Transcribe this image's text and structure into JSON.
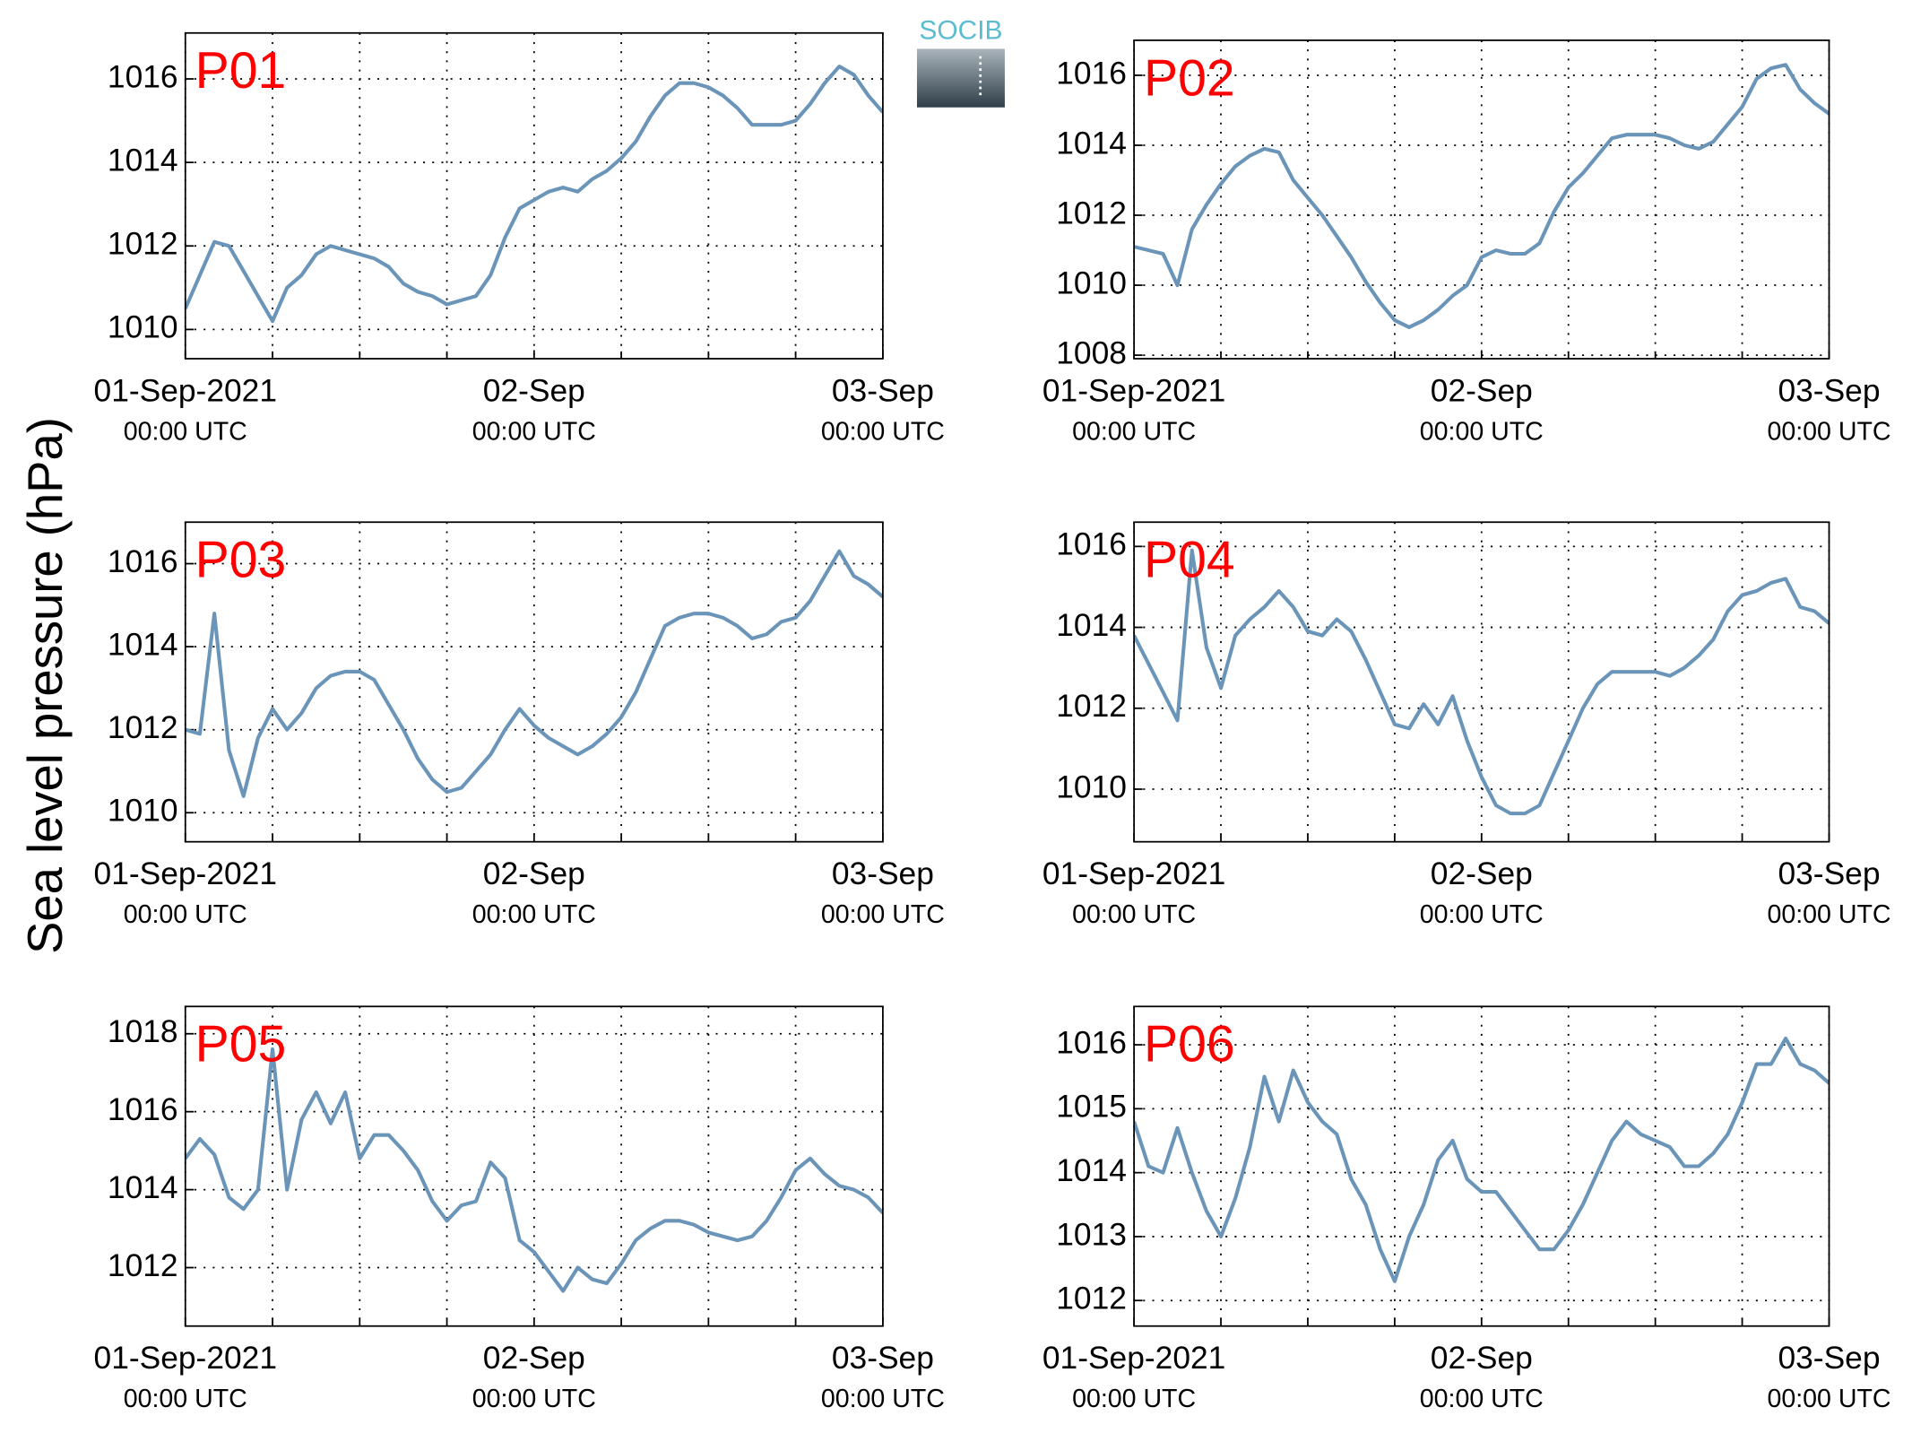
{
  "ylabel": "Sea level pressure (hPa)",
  "logo_text": "SOCIB",
  "chart_data": [
    {
      "type": "line",
      "title": "P01",
      "color": "#6a94b8",
      "xlim": [
        "2021-09-01 00:00",
        "2021-09-03 00:00"
      ],
      "ylim": [
        1009.3,
        1017.1
      ],
      "yticks": [
        1010,
        1012,
        1014,
        1016
      ],
      "grid": true,
      "xticks": [
        {
          "value": "2021-09-01 00:00",
          "label": [
            "01-Sep-2021",
            "00:00 UTC"
          ]
        },
        {
          "value": "2021-09-02 00:00",
          "label": [
            "02-Sep",
            "00:00 UTC"
          ]
        },
        {
          "value": "2021-09-03 00:00",
          "label": [
            "03-Sep",
            "00:00 UTC"
          ]
        }
      ],
      "xminorticks": [
        "2021-09-01 06:00",
        "2021-09-01 12:00",
        "2021-09-01 18:00",
        "2021-09-02 06:00",
        "2021-09-02 12:00",
        "2021-09-02 18:00"
      ],
      "x": [
        "2021-09-01 00:00",
        "2021-09-01 01:00",
        "2021-09-01 02:00",
        "2021-09-01 03:00",
        "2021-09-01 04:00",
        "2021-09-01 05:00",
        "2021-09-01 06:00",
        "2021-09-01 07:00",
        "2021-09-01 08:00",
        "2021-09-01 09:00",
        "2021-09-01 10:00",
        "2021-09-01 11:00",
        "2021-09-01 12:00",
        "2021-09-01 13:00",
        "2021-09-01 14:00",
        "2021-09-01 15:00",
        "2021-09-01 16:00",
        "2021-09-01 17:00",
        "2021-09-01 18:00",
        "2021-09-01 19:00",
        "2021-09-01 20:00",
        "2021-09-01 21:00",
        "2021-09-01 22:00",
        "2021-09-01 23:00",
        "2021-09-02 00:00",
        "2021-09-02 01:00",
        "2021-09-02 02:00",
        "2021-09-02 03:00",
        "2021-09-02 04:00",
        "2021-09-02 05:00",
        "2021-09-02 06:00",
        "2021-09-02 07:00",
        "2021-09-02 08:00",
        "2021-09-02 09:00",
        "2021-09-02 10:00",
        "2021-09-02 11:00",
        "2021-09-02 12:00",
        "2021-09-02 13:00",
        "2021-09-02 14:00",
        "2021-09-02 15:00",
        "2021-09-02 16:00",
        "2021-09-02 17:00",
        "2021-09-02 18:00",
        "2021-09-02 19:00",
        "2021-09-02 20:00",
        "2021-09-02 21:00",
        "2021-09-02 22:00",
        "2021-09-02 23:00",
        "2021-09-03 00:00"
      ],
      "values": [
        1010.5,
        1011.3,
        1012.1,
        1012.0,
        1011.4,
        1010.8,
        1010.2,
        1011.0,
        1011.3,
        1011.8,
        1012.0,
        1011.9,
        1011.8,
        1011.7,
        1011.5,
        1011.1,
        1010.9,
        1010.8,
        1010.6,
        1010.7,
        1010.8,
        1011.3,
        1012.2,
        1012.9,
        1013.1,
        1013.3,
        1013.4,
        1013.3,
        1013.6,
        1013.8,
        1014.1,
        1014.5,
        1015.1,
        1015.6,
        1015.9,
        1015.9,
        1015.8,
        1015.6,
        1015.3,
        1014.9,
        1014.9,
        1014.9,
        1015.0,
        1015.4,
        1015.9,
        1016.3,
        1016.1,
        1015.6,
        1015.2
      ]
    },
    {
      "type": "line",
      "title": "P02",
      "color": "#6a94b8",
      "xlim": [
        "2021-09-01 00:00",
        "2021-09-03 00:00"
      ],
      "ylim": [
        1007.9,
        1017.0
      ],
      "yticks": [
        1008,
        1010,
        1012,
        1014,
        1016
      ],
      "grid": true,
      "xticks": [
        {
          "value": "2021-09-01 00:00",
          "label": [
            "01-Sep-2021",
            "00:00 UTC"
          ]
        },
        {
          "value": "2021-09-02 00:00",
          "label": [
            "02-Sep",
            "00:00 UTC"
          ]
        },
        {
          "value": "2021-09-03 00:00",
          "label": [
            "03-Sep",
            "00:00 UTC"
          ]
        }
      ],
      "xminorticks": [
        "2021-09-01 06:00",
        "2021-09-01 12:00",
        "2021-09-01 18:00",
        "2021-09-02 06:00",
        "2021-09-02 12:00",
        "2021-09-02 18:00"
      ],
      "x": [
        "2021-09-01 00:00",
        "2021-09-01 01:00",
        "2021-09-01 02:00",
        "2021-09-01 03:00",
        "2021-09-01 04:00",
        "2021-09-01 05:00",
        "2021-09-01 06:00",
        "2021-09-01 07:00",
        "2021-09-01 08:00",
        "2021-09-01 09:00",
        "2021-09-01 10:00",
        "2021-09-01 11:00",
        "2021-09-01 12:00",
        "2021-09-01 13:00",
        "2021-09-01 14:00",
        "2021-09-01 15:00",
        "2021-09-01 16:00",
        "2021-09-01 17:00",
        "2021-09-01 18:00",
        "2021-09-01 19:00",
        "2021-09-01 20:00",
        "2021-09-01 21:00",
        "2021-09-01 22:00",
        "2021-09-01 23:00",
        "2021-09-02 00:00",
        "2021-09-02 01:00",
        "2021-09-02 02:00",
        "2021-09-02 03:00",
        "2021-09-02 04:00",
        "2021-09-02 05:00",
        "2021-09-02 06:00",
        "2021-09-02 07:00",
        "2021-09-02 08:00",
        "2021-09-02 09:00",
        "2021-09-02 10:00",
        "2021-09-02 11:00",
        "2021-09-02 12:00",
        "2021-09-02 13:00",
        "2021-09-02 14:00",
        "2021-09-02 15:00",
        "2021-09-02 16:00",
        "2021-09-02 17:00",
        "2021-09-02 18:00",
        "2021-09-02 19:00",
        "2021-09-02 20:00",
        "2021-09-02 21:00",
        "2021-09-02 22:00",
        "2021-09-02 23:00",
        "2021-09-03 00:00"
      ],
      "values": [
        1011.1,
        1011.0,
        1010.9,
        1010.0,
        1011.6,
        1012.3,
        1012.9,
        1013.4,
        1013.7,
        1013.9,
        1013.8,
        1013.0,
        1012.5,
        1012.0,
        1011.4,
        1010.8,
        1010.1,
        1009.5,
        1009.0,
        1008.8,
        1009.0,
        1009.3,
        1009.7,
        1010.0,
        1010.8,
        1011.0,
        1010.9,
        1010.9,
        1011.2,
        1012.1,
        1012.8,
        1013.2,
        1013.7,
        1014.2,
        1014.3,
        1014.3,
        1014.3,
        1014.2,
        1014.0,
        1013.9,
        1014.1,
        1014.6,
        1015.1,
        1015.9,
        1016.2,
        1016.3,
        1015.6,
        1015.2,
        1014.9
      ]
    },
    {
      "type": "line",
      "title": "P03",
      "color": "#6a94b8",
      "xlim": [
        "2021-09-01 00:00",
        "2021-09-03 00:00"
      ],
      "ylim": [
        1009.3,
        1017.0
      ],
      "yticks": [
        1010,
        1012,
        1014,
        1016
      ],
      "grid": true,
      "xticks": [
        {
          "value": "2021-09-01 00:00",
          "label": [
            "01-Sep-2021",
            "00:00 UTC"
          ]
        },
        {
          "value": "2021-09-02 00:00",
          "label": [
            "02-Sep",
            "00:00 UTC"
          ]
        },
        {
          "value": "2021-09-03 00:00",
          "label": [
            "03-Sep",
            "00:00 UTC"
          ]
        }
      ],
      "xminorticks": [
        "2021-09-01 06:00",
        "2021-09-01 12:00",
        "2021-09-01 18:00",
        "2021-09-02 06:00",
        "2021-09-02 12:00",
        "2021-09-02 18:00"
      ],
      "x": [
        "2021-09-01 00:00",
        "2021-09-01 01:00",
        "2021-09-01 02:00",
        "2021-09-01 03:00",
        "2021-09-01 04:00",
        "2021-09-01 05:00",
        "2021-09-01 06:00",
        "2021-09-01 07:00",
        "2021-09-01 08:00",
        "2021-09-01 09:00",
        "2021-09-01 10:00",
        "2021-09-01 11:00",
        "2021-09-01 12:00",
        "2021-09-01 13:00",
        "2021-09-01 14:00",
        "2021-09-01 15:00",
        "2021-09-01 16:00",
        "2021-09-01 17:00",
        "2021-09-01 18:00",
        "2021-09-01 19:00",
        "2021-09-01 20:00",
        "2021-09-01 21:00",
        "2021-09-01 22:00",
        "2021-09-01 23:00",
        "2021-09-02 00:00",
        "2021-09-02 01:00",
        "2021-09-02 02:00",
        "2021-09-02 03:00",
        "2021-09-02 04:00",
        "2021-09-02 05:00",
        "2021-09-02 06:00",
        "2021-09-02 07:00",
        "2021-09-02 08:00",
        "2021-09-02 09:00",
        "2021-09-02 10:00",
        "2021-09-02 11:00",
        "2021-09-02 12:00",
        "2021-09-02 13:00",
        "2021-09-02 14:00",
        "2021-09-02 15:00",
        "2021-09-02 16:00",
        "2021-09-02 17:00",
        "2021-09-02 18:00",
        "2021-09-02 19:00",
        "2021-09-02 20:00",
        "2021-09-02 21:00",
        "2021-09-02 22:00",
        "2021-09-02 23:00",
        "2021-09-03 00:00"
      ],
      "values": [
        1012.0,
        1011.9,
        1014.8,
        1011.5,
        1010.4,
        1011.8,
        1012.5,
        1012.0,
        1012.4,
        1013.0,
        1013.3,
        1013.4,
        1013.4,
        1013.2,
        1012.6,
        1012.0,
        1011.3,
        1010.8,
        1010.5,
        1010.6,
        1011.0,
        1011.4,
        1012.0,
        1012.5,
        1012.1,
        1011.8,
        1011.6,
        1011.4,
        1011.6,
        1011.9,
        1012.3,
        1012.9,
        1013.7,
        1014.5,
        1014.7,
        1014.8,
        1014.8,
        1014.7,
        1014.5,
        1014.2,
        1014.3,
        1014.6,
        1014.7,
        1015.1,
        1015.7,
        1016.3,
        1015.7,
        1015.5,
        1015.2
      ]
    },
    {
      "type": "line",
      "title": "P04",
      "color": "#6a94b8",
      "xlim": [
        "2021-09-01 00:00",
        "2021-09-03 00:00"
      ],
      "ylim": [
        1008.7,
        1016.6
      ],
      "yticks": [
        1010,
        1012,
        1014,
        1016
      ],
      "grid": true,
      "xticks": [
        {
          "value": "2021-09-01 00:00",
          "label": [
            "01-Sep-2021",
            "00:00 UTC"
          ]
        },
        {
          "value": "2021-09-02 00:00",
          "label": [
            "02-Sep",
            "00:00 UTC"
          ]
        },
        {
          "value": "2021-09-03 00:00",
          "label": [
            "03-Sep",
            "00:00 UTC"
          ]
        }
      ],
      "xminorticks": [
        "2021-09-01 06:00",
        "2021-09-01 12:00",
        "2021-09-01 18:00",
        "2021-09-02 06:00",
        "2021-09-02 12:00",
        "2021-09-02 18:00"
      ],
      "x": [
        "2021-09-01 00:00",
        "2021-09-01 01:00",
        "2021-09-01 02:00",
        "2021-09-01 03:00",
        "2021-09-01 04:00",
        "2021-09-01 05:00",
        "2021-09-01 06:00",
        "2021-09-01 07:00",
        "2021-09-01 08:00",
        "2021-09-01 09:00",
        "2021-09-01 10:00",
        "2021-09-01 11:00",
        "2021-09-01 12:00",
        "2021-09-01 13:00",
        "2021-09-01 14:00",
        "2021-09-01 15:00",
        "2021-09-01 16:00",
        "2021-09-01 17:00",
        "2021-09-01 18:00",
        "2021-09-01 19:00",
        "2021-09-01 20:00",
        "2021-09-01 21:00",
        "2021-09-01 22:00",
        "2021-09-01 23:00",
        "2021-09-02 00:00",
        "2021-09-02 01:00",
        "2021-09-02 02:00",
        "2021-09-02 03:00",
        "2021-09-02 04:00",
        "2021-09-02 05:00",
        "2021-09-02 06:00",
        "2021-09-02 07:00",
        "2021-09-02 08:00",
        "2021-09-02 09:00",
        "2021-09-02 10:00",
        "2021-09-02 11:00",
        "2021-09-02 12:00",
        "2021-09-02 13:00",
        "2021-09-02 14:00",
        "2021-09-02 15:00",
        "2021-09-02 16:00",
        "2021-09-02 17:00",
        "2021-09-02 18:00",
        "2021-09-02 19:00",
        "2021-09-02 20:00",
        "2021-09-02 21:00",
        "2021-09-02 22:00",
        "2021-09-02 23:00",
        "2021-09-03 00:00"
      ],
      "values": [
        1013.8,
        1013.1,
        1012.4,
        1011.7,
        1015.9,
        1013.5,
        1012.5,
        1013.8,
        1014.2,
        1014.5,
        1014.9,
        1014.5,
        1013.9,
        1013.8,
        1014.2,
        1013.9,
        1013.2,
        1012.4,
        1011.6,
        1011.5,
        1012.1,
        1011.6,
        1012.3,
        1011.2,
        1010.3,
        1009.6,
        1009.4,
        1009.4,
        1009.6,
        1010.4,
        1011.2,
        1012.0,
        1012.6,
        1012.9,
        1012.9,
        1012.9,
        1012.9,
        1012.8,
        1013.0,
        1013.3,
        1013.7,
        1014.4,
        1014.8,
        1014.9,
        1015.1,
        1015.2,
        1014.5,
        1014.4,
        1014.1
      ]
    },
    {
      "type": "line",
      "title": "P05",
      "color": "#6a94b8",
      "xlim": [
        "2021-09-01 00:00",
        "2021-09-03 00:00"
      ],
      "ylim": [
        1010.5,
        1018.7
      ],
      "yticks": [
        1012,
        1014,
        1016,
        1018
      ],
      "grid": true,
      "xticks": [
        {
          "value": "2021-09-01 00:00",
          "label": [
            "01-Sep-2021",
            "00:00 UTC"
          ]
        },
        {
          "value": "2021-09-02 00:00",
          "label": [
            "02-Sep",
            "00:00 UTC"
          ]
        },
        {
          "value": "2021-09-03 00:00",
          "label": [
            "03-Sep",
            "00:00 UTC"
          ]
        }
      ],
      "xminorticks": [
        "2021-09-01 06:00",
        "2021-09-01 12:00",
        "2021-09-01 18:00",
        "2021-09-02 06:00",
        "2021-09-02 12:00",
        "2021-09-02 18:00"
      ],
      "x": [
        "2021-09-01 00:00",
        "2021-09-01 01:00",
        "2021-09-01 02:00",
        "2021-09-01 03:00",
        "2021-09-01 04:00",
        "2021-09-01 05:00",
        "2021-09-01 06:00",
        "2021-09-01 07:00",
        "2021-09-01 08:00",
        "2021-09-01 09:00",
        "2021-09-01 10:00",
        "2021-09-01 11:00",
        "2021-09-01 12:00",
        "2021-09-01 13:00",
        "2021-09-01 14:00",
        "2021-09-01 15:00",
        "2021-09-01 16:00",
        "2021-09-01 17:00",
        "2021-09-01 18:00",
        "2021-09-01 19:00",
        "2021-09-01 20:00",
        "2021-09-01 21:00",
        "2021-09-01 22:00",
        "2021-09-01 23:00",
        "2021-09-02 00:00",
        "2021-09-02 01:00",
        "2021-09-02 02:00",
        "2021-09-02 03:00",
        "2021-09-02 04:00",
        "2021-09-02 05:00",
        "2021-09-02 06:00",
        "2021-09-02 07:00",
        "2021-09-02 08:00",
        "2021-09-02 09:00",
        "2021-09-02 10:00",
        "2021-09-02 11:00",
        "2021-09-02 12:00",
        "2021-09-02 13:00",
        "2021-09-02 14:00",
        "2021-09-02 15:00",
        "2021-09-02 16:00",
        "2021-09-02 17:00",
        "2021-09-02 18:00",
        "2021-09-02 19:00",
        "2021-09-02 20:00",
        "2021-09-02 21:00",
        "2021-09-02 22:00",
        "2021-09-02 23:00",
        "2021-09-03 00:00"
      ],
      "values": [
        1014.8,
        1015.3,
        1014.9,
        1013.8,
        1013.5,
        1014.0,
        1017.6,
        1014.0,
        1015.8,
        1016.5,
        1015.7,
        1016.5,
        1014.8,
        1015.4,
        1015.4,
        1015.0,
        1014.5,
        1013.7,
        1013.2,
        1013.6,
        1013.7,
        1014.7,
        1014.3,
        1012.7,
        1012.4,
        1011.9,
        1011.4,
        1012.0,
        1011.7,
        1011.6,
        1012.1,
        1012.7,
        1013.0,
        1013.2,
        1013.2,
        1013.1,
        1012.9,
        1012.8,
        1012.7,
        1012.8,
        1013.2,
        1013.8,
        1014.5,
        1014.8,
        1014.4,
        1014.1,
        1014.0,
        1013.8,
        1013.4
      ]
    },
    {
      "type": "line",
      "title": "P06",
      "color": "#6a94b8",
      "xlim": [
        "2021-09-01 00:00",
        "2021-09-03 00:00"
      ],
      "ylim": [
        1011.6,
        1016.6
      ],
      "yticks": [
        1012,
        1013,
        1014,
        1015,
        1016
      ],
      "grid": true,
      "xticks": [
        {
          "value": "2021-09-01 00:00",
          "label": [
            "01-Sep-2021",
            "00:00 UTC"
          ]
        },
        {
          "value": "2021-09-02 00:00",
          "label": [
            "02-Sep",
            "00:00 UTC"
          ]
        },
        {
          "value": "2021-09-03 00:00",
          "label": [
            "03-Sep",
            "00:00 UTC"
          ]
        }
      ],
      "xminorticks": [
        "2021-09-01 06:00",
        "2021-09-01 12:00",
        "2021-09-01 18:00",
        "2021-09-02 06:00",
        "2021-09-02 12:00",
        "2021-09-02 18:00"
      ],
      "x": [
        "2021-09-01 00:00",
        "2021-09-01 01:00",
        "2021-09-01 02:00",
        "2021-09-01 03:00",
        "2021-09-01 04:00",
        "2021-09-01 05:00",
        "2021-09-01 06:00",
        "2021-09-01 07:00",
        "2021-09-01 08:00",
        "2021-09-01 09:00",
        "2021-09-01 10:00",
        "2021-09-01 11:00",
        "2021-09-01 12:00",
        "2021-09-01 13:00",
        "2021-09-01 14:00",
        "2021-09-01 15:00",
        "2021-09-01 16:00",
        "2021-09-01 17:00",
        "2021-09-01 18:00",
        "2021-09-01 19:00",
        "2021-09-01 20:00",
        "2021-09-01 21:00",
        "2021-09-01 22:00",
        "2021-09-01 23:00",
        "2021-09-02 00:00",
        "2021-09-02 01:00",
        "2021-09-02 02:00",
        "2021-09-02 03:00",
        "2021-09-02 04:00",
        "2021-09-02 05:00",
        "2021-09-02 06:00",
        "2021-09-02 07:00",
        "2021-09-02 08:00",
        "2021-09-02 09:00",
        "2021-09-02 10:00",
        "2021-09-02 11:00",
        "2021-09-02 12:00",
        "2021-09-02 13:00",
        "2021-09-02 14:00",
        "2021-09-02 15:00",
        "2021-09-02 16:00",
        "2021-09-02 17:00",
        "2021-09-02 18:00",
        "2021-09-02 19:00",
        "2021-09-02 20:00",
        "2021-09-02 21:00",
        "2021-09-02 22:00",
        "2021-09-02 23:00",
        "2021-09-03 00:00"
      ],
      "values": [
        1014.8,
        1014.1,
        1014.0,
        1014.7,
        1014.0,
        1013.4,
        1013.0,
        1013.6,
        1014.4,
        1015.5,
        1014.8,
        1015.6,
        1015.1,
        1014.8,
        1014.6,
        1013.9,
        1013.5,
        1012.8,
        1012.3,
        1013.0,
        1013.5,
        1014.2,
        1014.5,
        1013.9,
        1013.7,
        1013.7,
        1013.4,
        1013.1,
        1012.8,
        1012.8,
        1013.1,
        1013.5,
        1014.0,
        1014.5,
        1014.8,
        1014.6,
        1014.5,
        1014.4,
        1014.1,
        1014.1,
        1014.3,
        1014.6,
        1015.1,
        1015.7,
        1015.7,
        1016.1,
        1015.7,
        1015.6,
        1015.4
      ]
    }
  ]
}
